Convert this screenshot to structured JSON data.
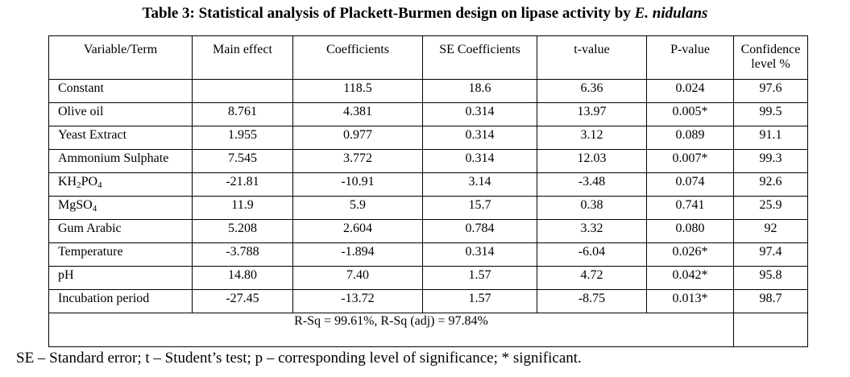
{
  "title": {
    "prefix": "Table 3: Statistical analysis of Plackett-Burmen design on lipase activity by ",
    "organism": "E. nidulans"
  },
  "headers": {
    "variable": "Variable/Term",
    "main_effect": "Main effect",
    "coefficients": "Coefficients",
    "se_coefficients": "SE Coefficients",
    "t_value": "t-value",
    "p_value": "P-value",
    "confidence_line1": "Confidence",
    "confidence_line2": "level %"
  },
  "rows": [
    {
      "term": "Constant",
      "main_effect": "",
      "coef": "118.5",
      "se": "18.6",
      "t": "6.36",
      "p": "0.024",
      "conf": "97.6"
    },
    {
      "term": "Olive oil",
      "main_effect": "8.761",
      "coef": "4.381",
      "se": "0.314",
      "t": "13.97",
      "p": "0.005*",
      "conf": "99.5"
    },
    {
      "term": "Yeast Extract",
      "main_effect": "1.955",
      "coef": "0.977",
      "se": "0.314",
      "t": "3.12",
      "p": "0.089",
      "conf": "91.1"
    },
    {
      "term": "Ammonium Sulphate",
      "main_effect": "7.545",
      "coef": "3.772",
      "se": "0.314",
      "t": "12.03",
      "p": "0.007*",
      "conf": "99.3"
    },
    {
      "term_base": "KH",
      "term_sub1": "2",
      "term_mid": "PO",
      "term_sub2": "4",
      "main_effect": "-21.81",
      "coef": "-10.91",
      "se": "3.14",
      "t": "-3.48",
      "p": "0.074",
      "conf": "92.6"
    },
    {
      "term_base": "MgSO",
      "term_sub2": "4",
      "main_effect": "11.9",
      "coef": "5.9",
      "se": "15.7",
      "t": "0.38",
      "p": "0.741",
      "conf": "25.9"
    },
    {
      "term": "Gum Arabic",
      "main_effect": "5.208",
      "coef": "2.604",
      "se": "0.784",
      "t": "3.32",
      "p": "0.080",
      "conf": "92"
    },
    {
      "term": "Temperature",
      "main_effect": "-3.788",
      "coef": "-1.894",
      "se": "0.314",
      "t": "-6.04",
      "p": "0.026*",
      "conf": "97.4"
    },
    {
      "term": "pH",
      "main_effect": "14.80",
      "coef": "7.40",
      "se": "1.57",
      "t": "4.72",
      "p": "0.042*",
      "conf": "95.8"
    },
    {
      "term": "Incubation period",
      "main_effect": "-27.45",
      "coef": "-13.72",
      "se": "1.57",
      "t": "-8.75",
      "p": "0.013*",
      "conf": "98.7"
    }
  ],
  "rsq": "R-Sq = 99.61%, R-Sq (adj) =  97.84%",
  "footnote": "SE – Standard error; t – Student’s test; p – corresponding level of significance; * significant."
}
